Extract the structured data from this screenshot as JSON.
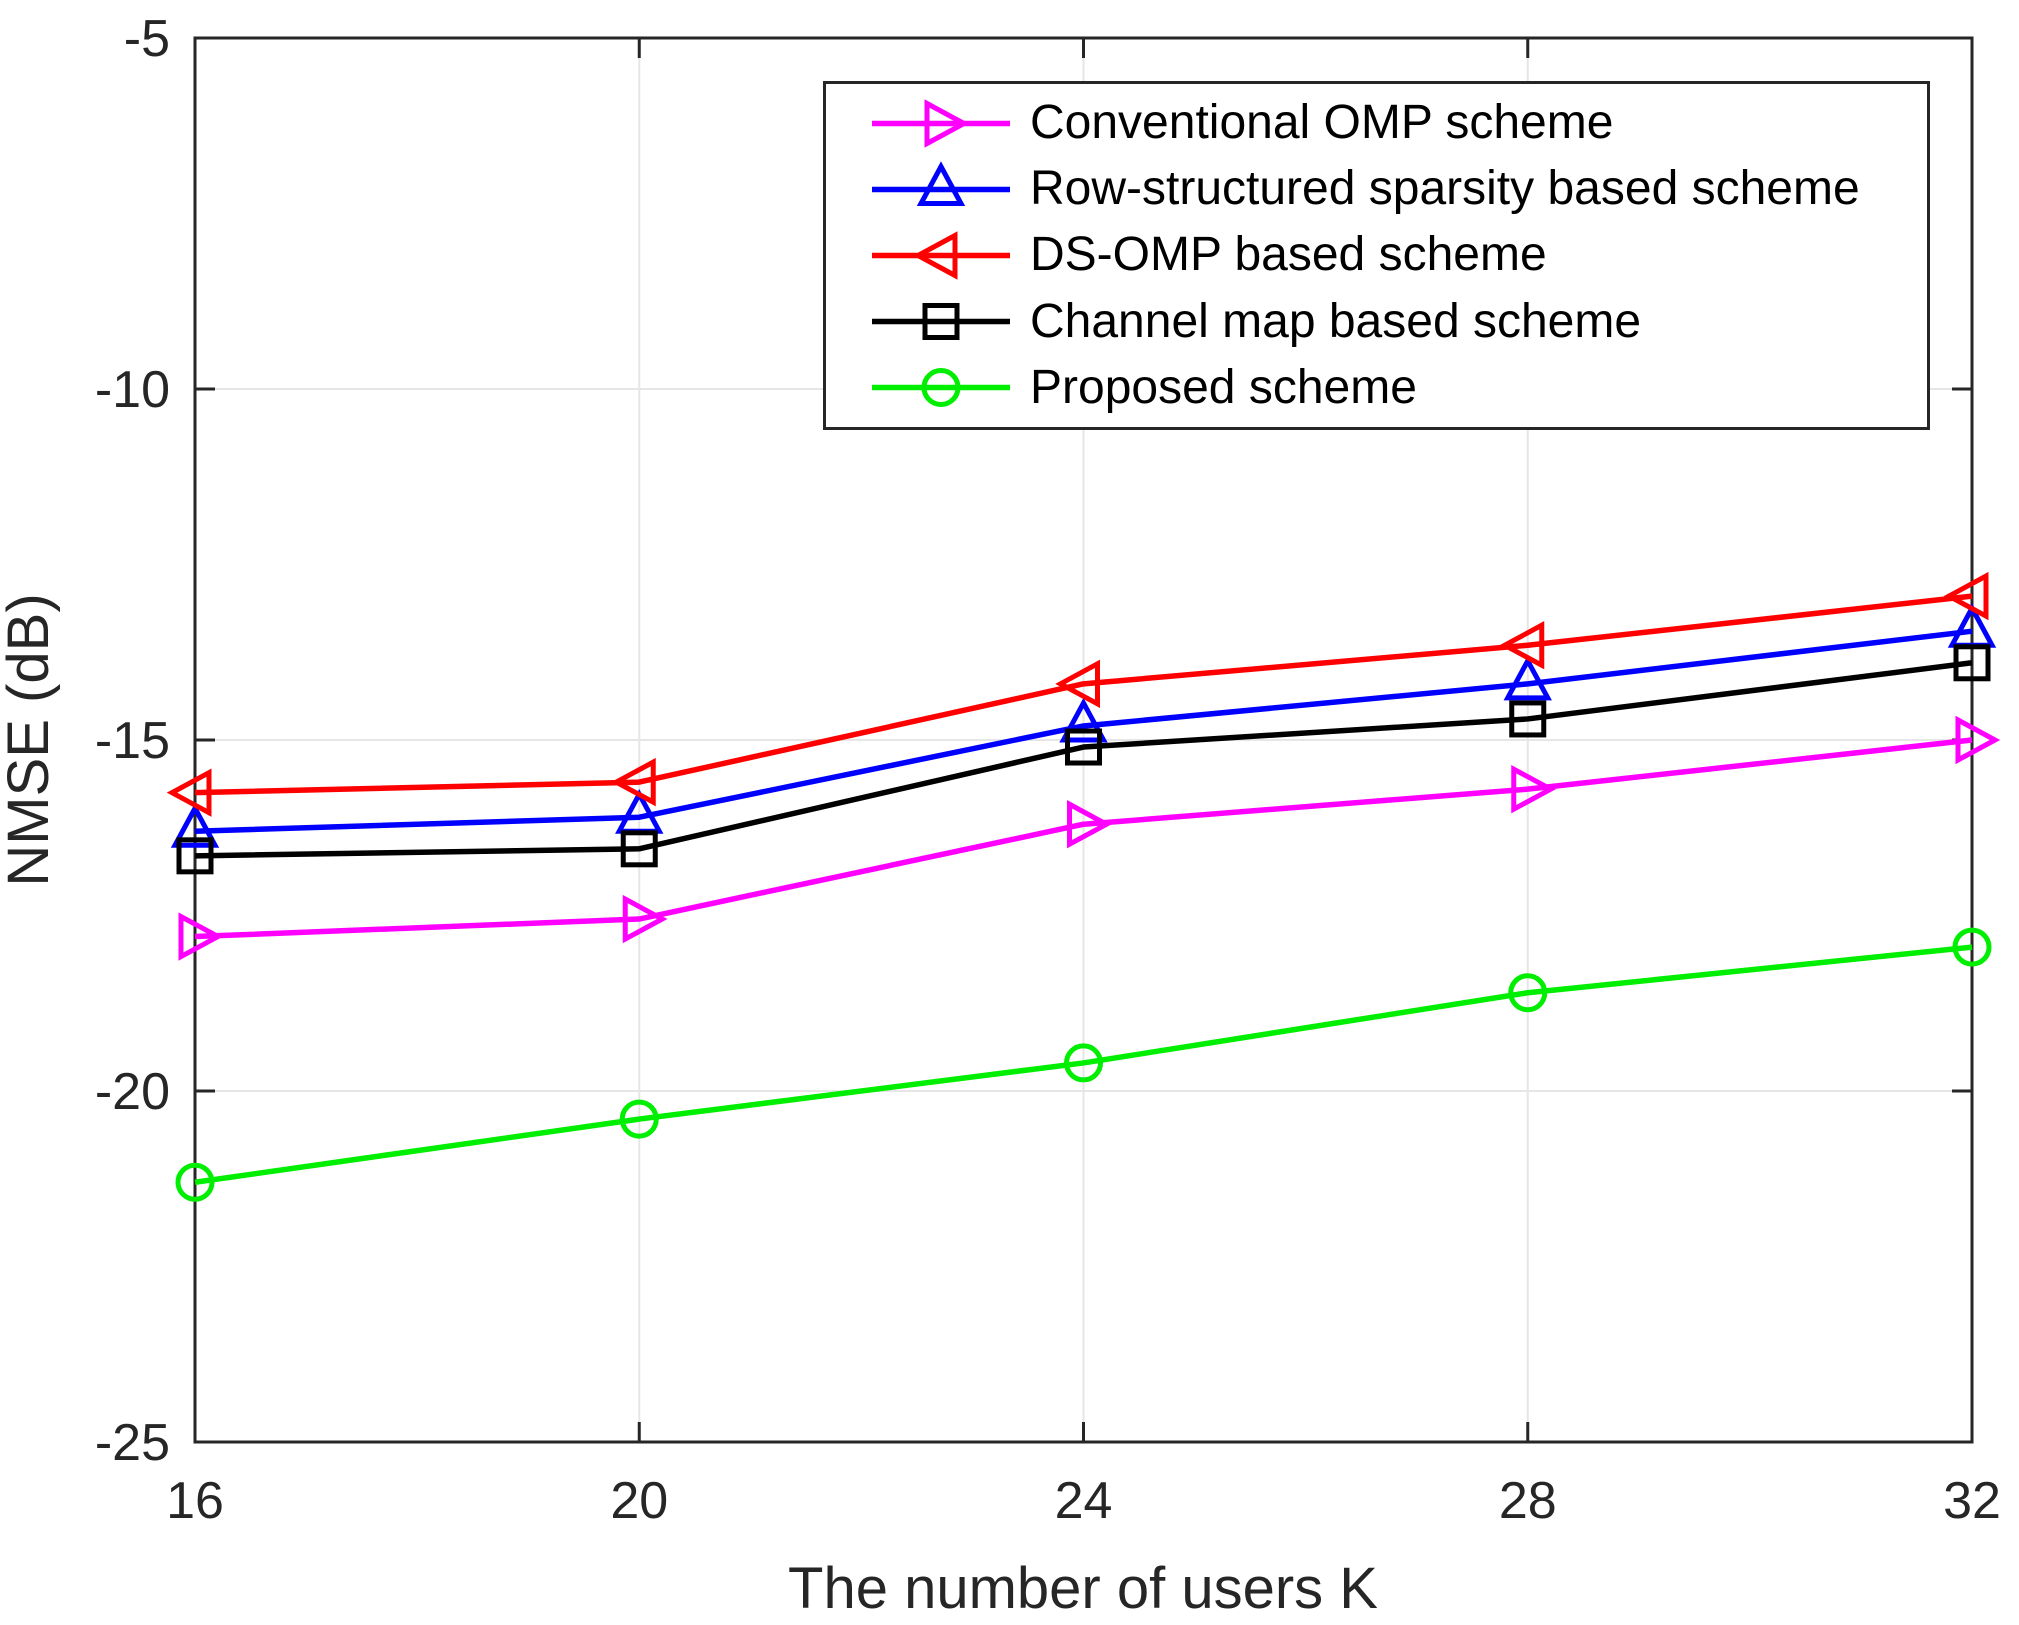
{
  "figure": {
    "background": "#ffffff",
    "axis_color": "#262626",
    "grid_color": "#e6e6e6",
    "tick_label_color": "#262626"
  },
  "chart_data": {
    "type": "line",
    "title": "",
    "xlabel": "The number of users K",
    "ylabel": "NMSE (dB)",
    "xlim": [
      16,
      32
    ],
    "ylim": [
      -25,
      -5
    ],
    "x_ticks": [
      16,
      20,
      24,
      28,
      32
    ],
    "y_ticks": [
      -25,
      -20,
      -15,
      -10,
      -5
    ],
    "grid": true,
    "legend_position": "inside-top-right",
    "x": [
      16,
      20,
      24,
      28,
      32
    ],
    "series": [
      {
        "name": "Conventional OMP scheme",
        "color": "#ff00ff",
        "marker": "triangle-right",
        "values": [
          -17.8,
          -17.55,
          -16.2,
          -15.7,
          -15.0
        ]
      },
      {
        "name": "Row-structured sparsity based scheme",
        "color": "#0000ff",
        "marker": "triangle-up",
        "values": [
          -16.3,
          -16.1,
          -14.8,
          -14.2,
          -13.45
        ]
      },
      {
        "name": "DS-OMP based scheme",
        "color": "#ff0000",
        "marker": "triangle-left",
        "values": [
          -15.75,
          -15.6,
          -14.2,
          -13.65,
          -12.95
        ]
      },
      {
        "name": "Channel map based scheme",
        "color": "#000000",
        "marker": "square",
        "values": [
          -16.65,
          -16.55,
          -15.1,
          -14.7,
          -13.9
        ]
      },
      {
        "name": "Proposed scheme",
        "color": "#00ee00",
        "marker": "circle",
        "values": [
          -21.3,
          -20.4,
          -19.6,
          -18.6,
          -17.95
        ]
      }
    ]
  }
}
